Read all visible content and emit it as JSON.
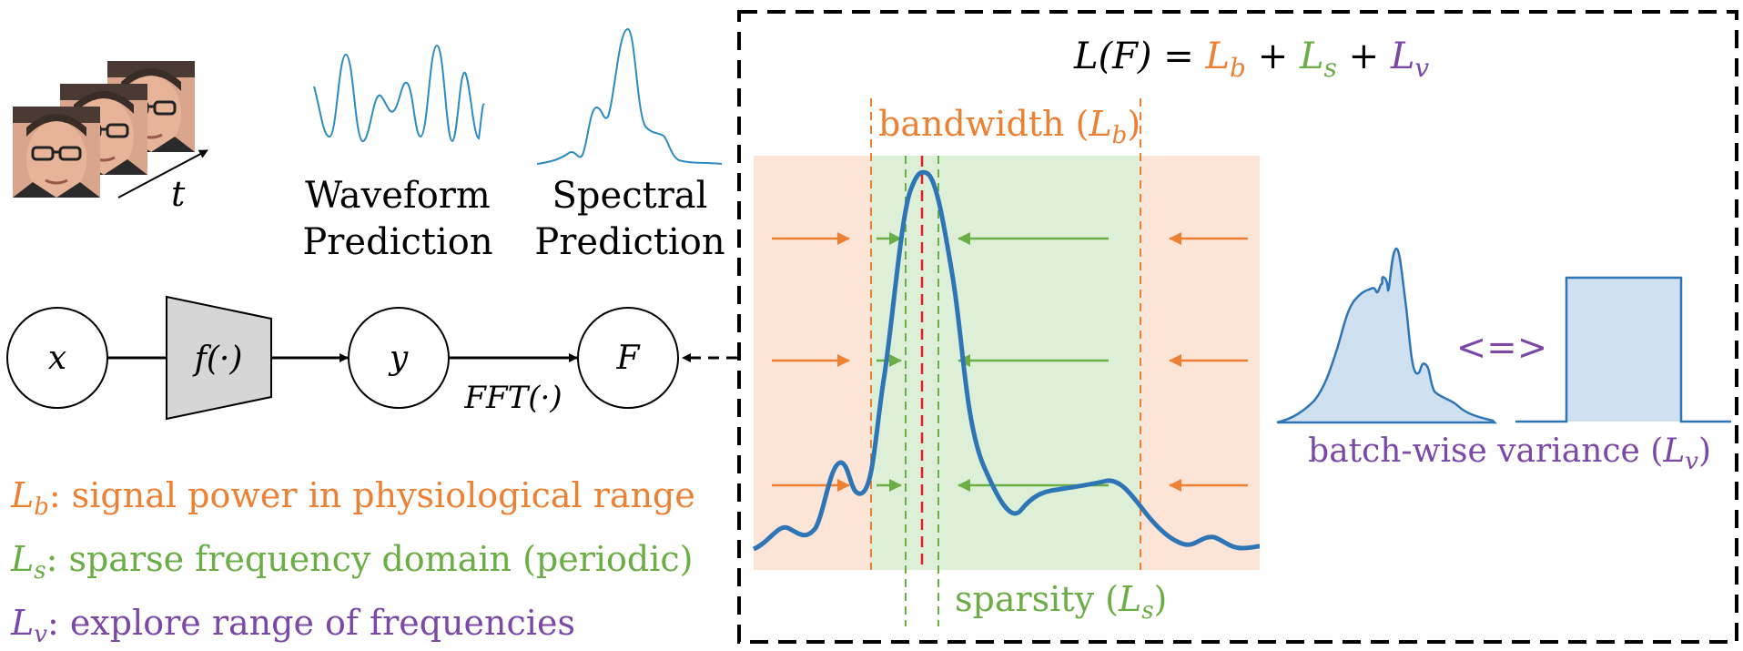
{
  "colors": {
    "orange": "#EE8033",
    "green": "#6AAE45",
    "purple": "#7B48A8",
    "blue": "#2E75B6",
    "lightblue": "#CFE0F0",
    "red": "#E0202E",
    "orange_band": "#FCE4D6",
    "green_band": "#DDEFD6",
    "gray_trap": "#D6D6D6"
  },
  "video": {
    "time_label": "t"
  },
  "predictions": {
    "waveform_label_1": "Waveform",
    "waveform_label_2": "Prediction",
    "spectral_label_1": "Spectral",
    "spectral_label_2": "Prediction"
  },
  "pipeline": {
    "input_node": "x",
    "model_node": "f(·)",
    "output_node": "y",
    "fft_label": "FFT(·)",
    "spectrum_node": "F"
  },
  "legend": {
    "lb_symbol": "L",
    "lb_sub": "b",
    "lb_text": ": signal power in physiological range",
    "ls_symbol": "L",
    "ls_sub": "s",
    "ls_text": ": sparse frequency domain (periodic)",
    "lv_symbol": "L",
    "lv_sub": "v",
    "lv_text": ": explore range of frequencies"
  },
  "equation": {
    "lhs": "L(F) = ",
    "lb": "L",
    "lb_sub": "b",
    "plus1": " + ",
    "ls": "L",
    "ls_sub": "s",
    "plus2": " + ",
    "lv": "L",
    "lv_sub": "v"
  },
  "loss_panel": {
    "bandwidth_label": "bandwidth (",
    "bandwidth_sym": "L",
    "bandwidth_sub": "b",
    "bandwidth_close": ")",
    "sparsity_label": "sparsity (",
    "sparsity_sym": "L",
    "sparsity_sub": "s",
    "sparsity_close": ")"
  },
  "variance": {
    "equivalence": "<=>",
    "label": "batch-wise variance (",
    "sym": "L",
    "sub": "v",
    "close": ")"
  }
}
